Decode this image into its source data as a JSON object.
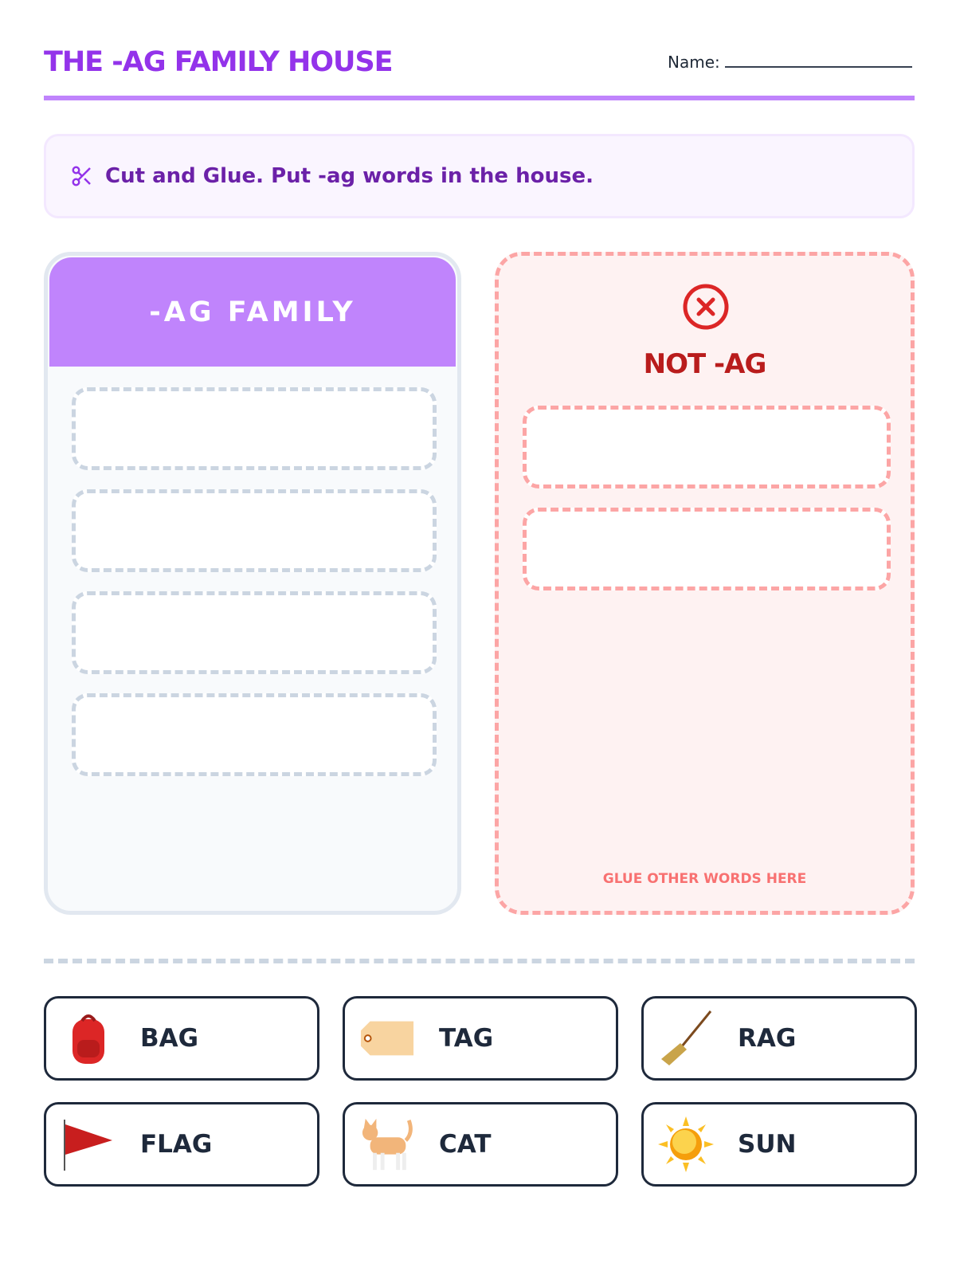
{
  "header": {
    "title": "THE -AG FAMILY HOUSE",
    "name_label": "Name:"
  },
  "instruction": {
    "icon": "scissors-icon",
    "text": "Cut and Glue. Put -ag words in the house."
  },
  "ag_house": {
    "title": "-AG FAMILY",
    "slots": 4
  },
  "not_ag": {
    "icon": "x-circle-icon",
    "title": "NOT -AG",
    "slots": 2,
    "footer": "GLUE OTHER WORDS HERE"
  },
  "cards": [
    {
      "word": "BAG",
      "icon": "backpack-icon"
    },
    {
      "word": "TAG",
      "icon": "tag-icon"
    },
    {
      "word": "RAG",
      "icon": "broom-icon"
    },
    {
      "word": "FLAG",
      "icon": "flag-icon"
    },
    {
      "word": "CAT",
      "icon": "cat-icon"
    },
    {
      "word": "SUN",
      "icon": "sun-icon"
    }
  ],
  "colors": {
    "accent": "#9333ea",
    "accent_light": "#c084fc",
    "danger": "#b91c1c",
    "danger_light": "#fca5a5"
  }
}
